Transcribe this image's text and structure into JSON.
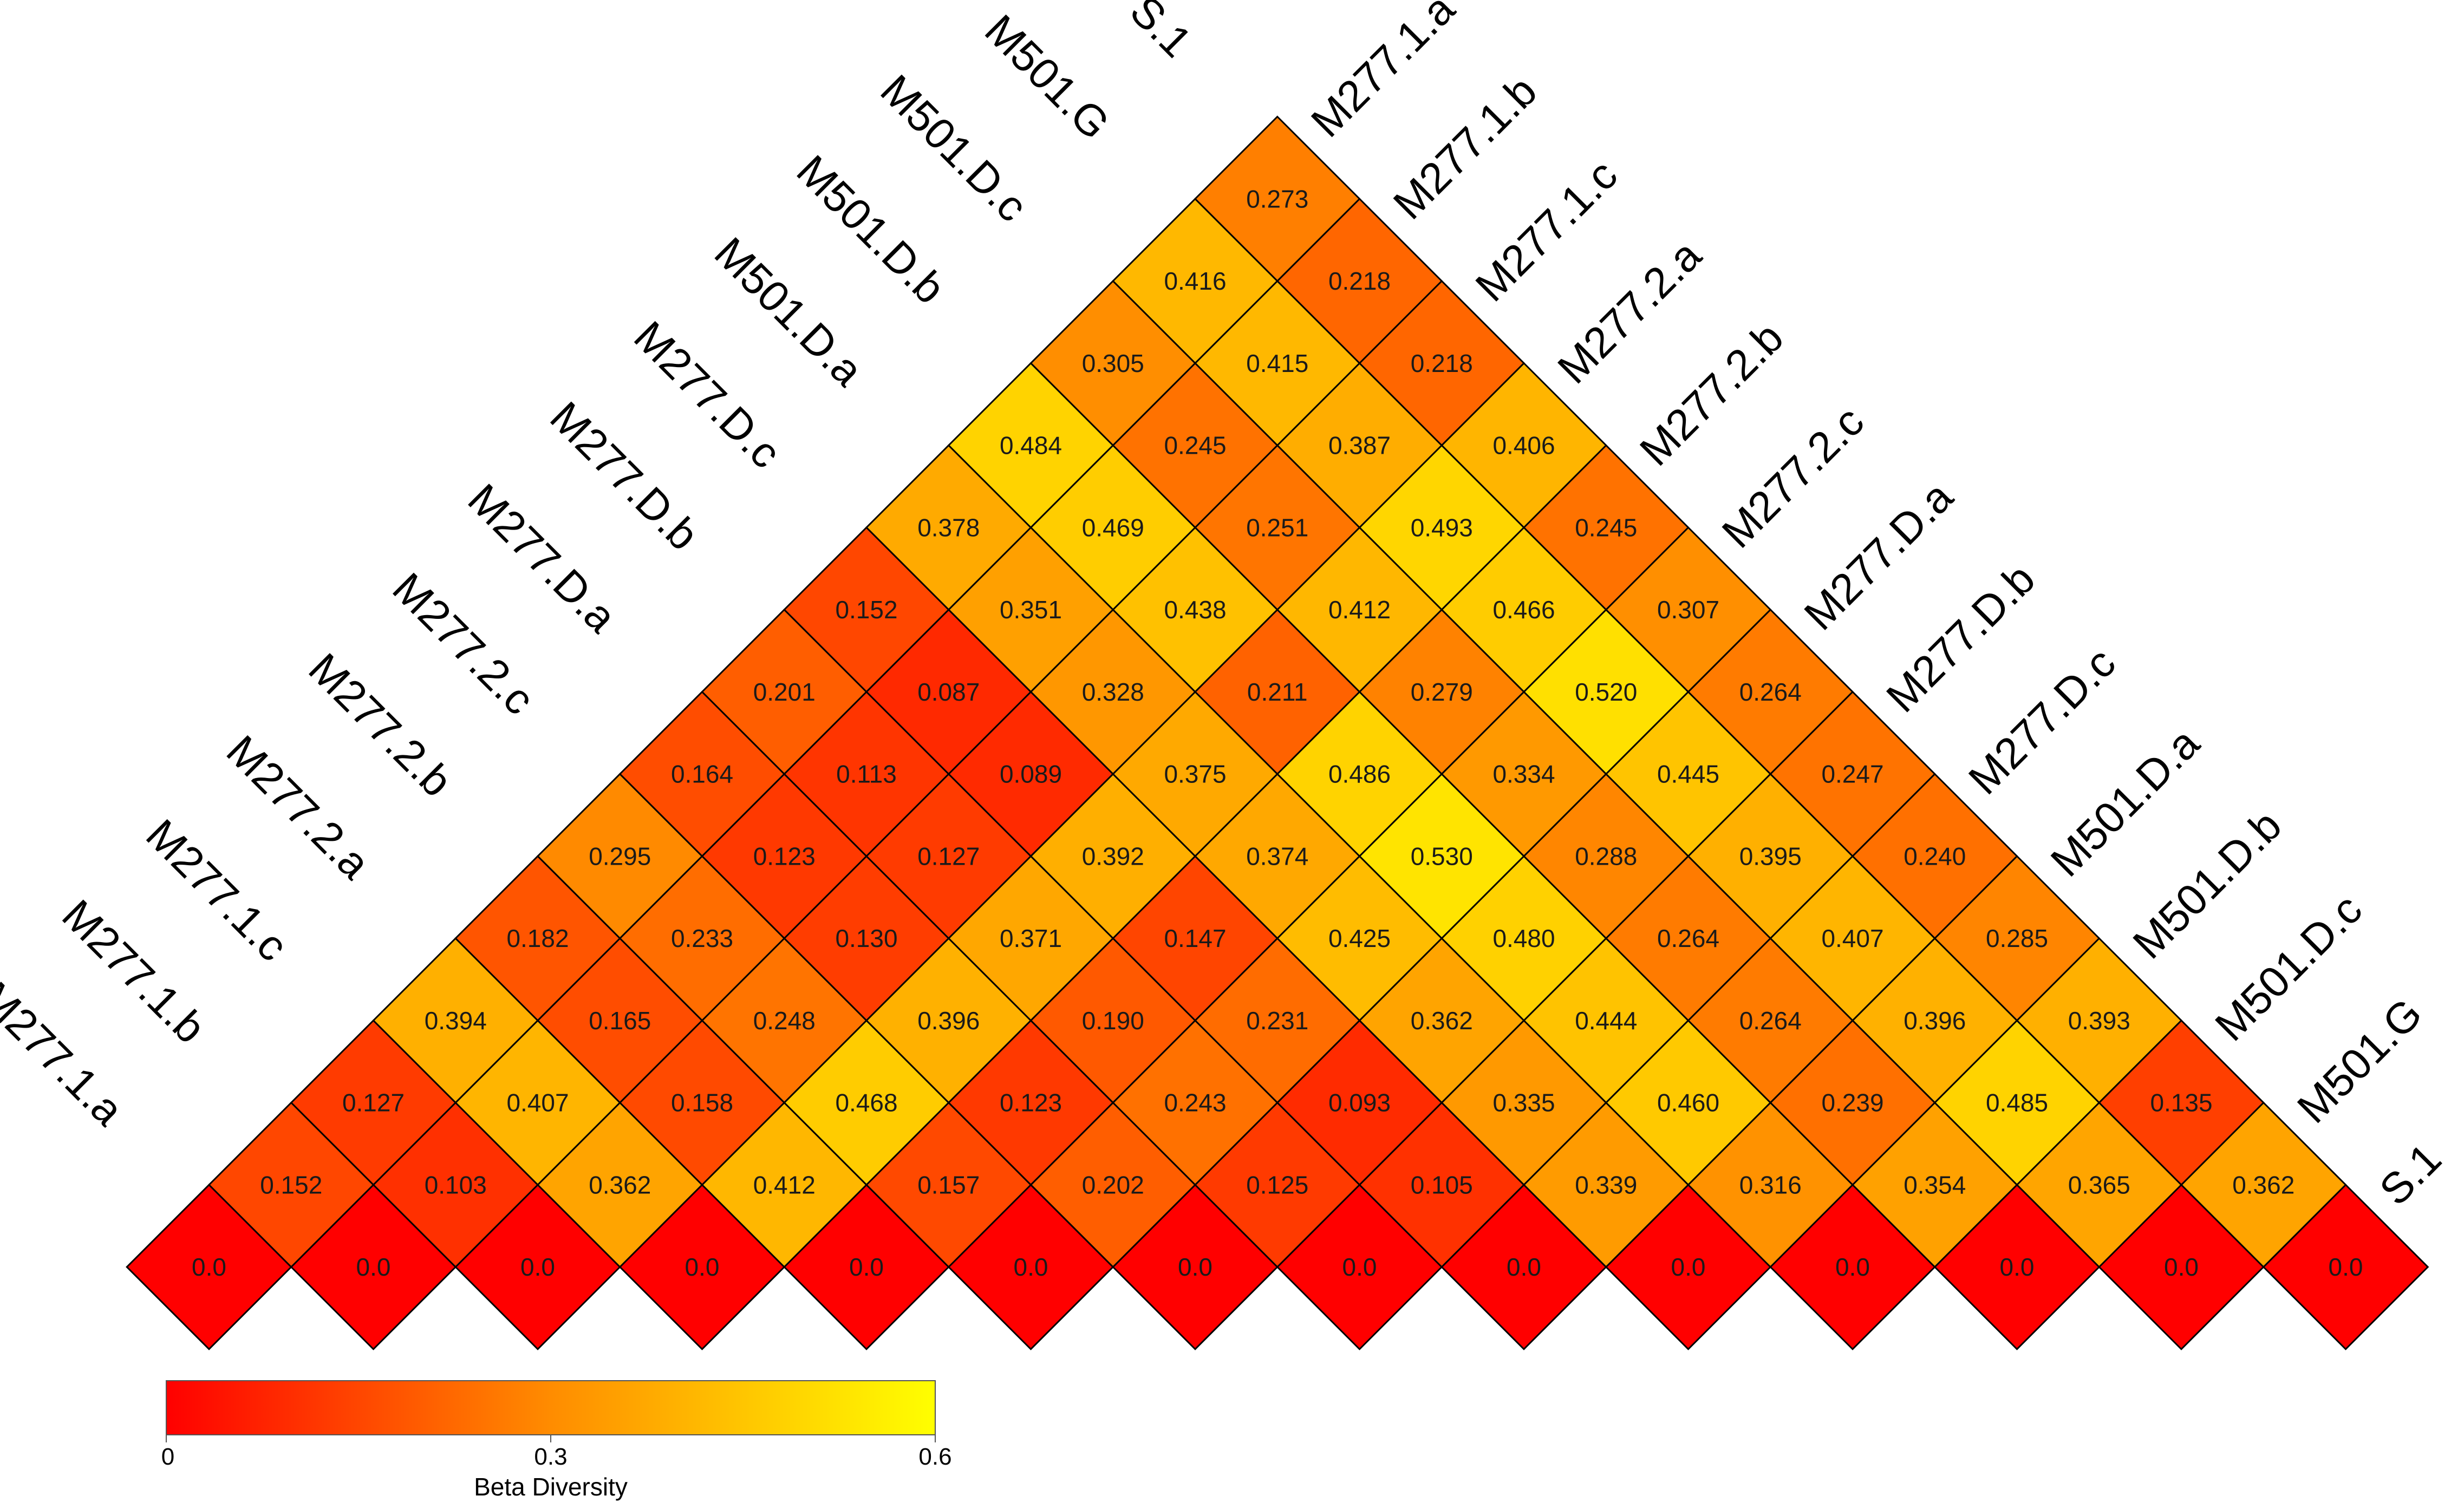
{
  "chart_data": {
    "type": "heatmap",
    "layout": "triangular pairwise matrix (diamond cells)",
    "samples": [
      "M277.1.a",
      "M277.1.b",
      "M277.1.c",
      "M277.2.a",
      "M277.2.b",
      "M277.2.c",
      "M277.D.a",
      "M277.D.b",
      "M277.D.c",
      "M501.D.a",
      "M501.D.b",
      "M501.D.c",
      "M501.G",
      "S.1"
    ],
    "rows_by_offset": [
      [
        "0.0",
        "0.0",
        "0.0",
        "0.0",
        "0.0",
        "0.0",
        "0.0",
        "0.0",
        "0.0",
        "0.0",
        "0.0",
        "0.0",
        "0.0",
        "0.0"
      ],
      [
        "0.152",
        "0.103",
        "0.362",
        "0.412",
        "0.157",
        "0.202",
        "0.125",
        "0.105",
        "0.339",
        "0.316",
        "0.354",
        "0.365",
        "0.362"
      ],
      [
        "0.127",
        "0.407",
        "0.158",
        "0.468",
        "0.123",
        "0.243",
        "0.093",
        "0.335",
        "0.460",
        "0.239",
        "0.485",
        "0.135"
      ],
      [
        "0.394",
        "0.165",
        "0.248",
        "0.396",
        "0.190",
        "0.231",
        "0.362",
        "0.444",
        "0.264",
        "0.396",
        "0.393"
      ],
      [
        "0.182",
        "0.233",
        "0.130",
        "0.371",
        "0.147",
        "0.425",
        "0.480",
        "0.264",
        "0.407",
        "0.285"
      ],
      [
        "0.295",
        "0.123",
        "0.127",
        "0.392",
        "0.374",
        "0.530",
        "0.288",
        "0.395",
        "0.240"
      ],
      [
        "0.164",
        "0.113",
        "0.089",
        "0.375",
        "0.486",
        "0.334",
        "0.445",
        "0.247"
      ],
      [
        "0.201",
        "0.087",
        "0.328",
        "0.211",
        "0.279",
        "0.520",
        "0.264"
      ],
      [
        "0.152",
        "0.351",
        "0.438",
        "0.412",
        "0.466",
        "0.307"
      ],
      [
        "0.378",
        "0.469",
        "0.251",
        "0.493",
        "0.245"
      ],
      [
        "0.484",
        "0.245",
        "0.387",
        "0.406"
      ],
      [
        "0.305",
        "0.415",
        "0.218"
      ],
      [
        "0.416",
        "0.218"
      ],
      [
        "0.273"
      ]
    ],
    "color_scale": {
      "title": "Beta Diversity",
      "min": 0,
      "max": 0.6,
      "ticks": [
        "0",
        "0.3",
        "0.6"
      ],
      "colors": [
        "#ff0000",
        "#ff8c00",
        "#ffff00"
      ]
    },
    "legend_position": "bottom-left"
  }
}
